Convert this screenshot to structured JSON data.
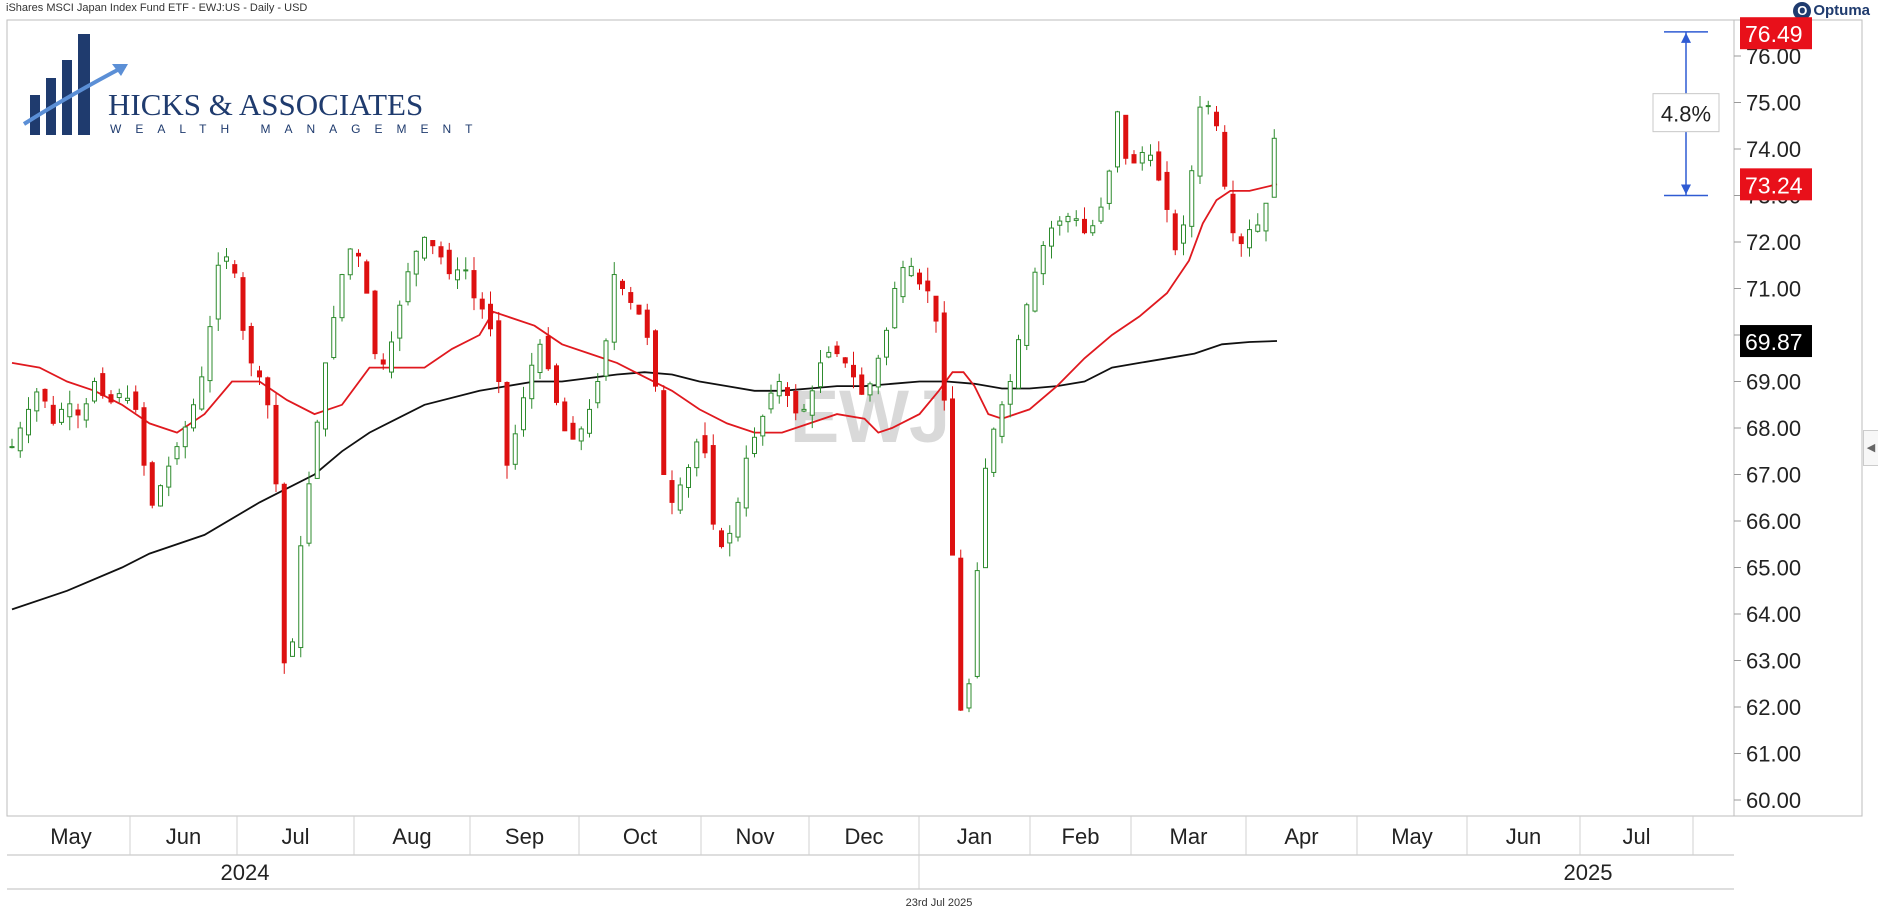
{
  "header": {
    "title": "iShares MSCI Japan Index Fund ETF - EWJ:US - Daily - USD",
    "brand": "Optuma",
    "brand_mark": "O"
  },
  "logo": {
    "name": "HICKS & ASSOCIATES",
    "tagline": "WEALTH MANAGEMENT"
  },
  "watermark": "EWJ",
  "footer": {
    "date": "23rd Jul 2025"
  },
  "colors": {
    "up": "#2e8b2e",
    "down": "#dd1111",
    "ma_short": "#e0191f",
    "ma_long": "#111111",
    "measure": "#2f5bd3",
    "logo": "#1f3b6e"
  },
  "chart_data": {
    "type": "candlestick",
    "ylim": [
      59.8,
      76.9
    ],
    "yticks": [
      "60.00",
      "61.00",
      "62.00",
      "63.00",
      "64.00",
      "65.00",
      "66.00",
      "67.00",
      "68.00",
      "69.00",
      "70.00",
      "71.00",
      "72.00",
      "73.00",
      "74.00",
      "75.00",
      "76.00"
    ],
    "months": [
      "May",
      "Jun",
      "Jul",
      "Aug",
      "Sep",
      "Oct",
      "Nov",
      "Dec",
      "Jan",
      "Feb",
      "Mar",
      "Apr",
      "May",
      "Jun",
      "Jul"
    ],
    "years": [
      "2024",
      "2025"
    ],
    "price_labels": [
      {
        "text": "76.49",
        "value": 76.49,
        "bg": "#e8101a"
      },
      {
        "text": "73.24",
        "value": 73.24,
        "bg": "#e8101a"
      },
      {
        "text": "69.87",
        "value": 69.87,
        "bg": "#000000"
      }
    ],
    "measurement": {
      "from": 73.0,
      "to": 76.52,
      "label": "4.8%"
    },
    "close_path": [
      [
        0.0,
        67.6
      ],
      [
        0.6,
        68.4
      ],
      [
        1.0,
        68.9
      ],
      [
        1.5,
        68.1
      ],
      [
        2.0,
        68.6
      ],
      [
        2.5,
        68.2
      ],
      [
        3.0,
        69.0
      ],
      [
        3.5,
        68.5
      ],
      [
        4.0,
        68.8
      ],
      [
        4.5,
        68.4
      ],
      [
        4.8,
        67.2
      ],
      [
        5.0,
        66.2
      ],
      [
        5.5,
        66.9
      ],
      [
        6.0,
        67.6
      ],
      [
        6.5,
        68.3
      ],
      [
        7.0,
        69.3
      ],
      [
        7.5,
        71.5
      ],
      [
        8.0,
        71.8
      ],
      [
        8.3,
        70.4
      ],
      [
        8.6,
        69.5
      ],
      [
        9.0,
        69.1
      ],
      [
        9.4,
        68.3
      ],
      [
        9.6,
        66.8
      ],
      [
        9.8,
        64.9
      ],
      [
        10.0,
        61.0
      ],
      [
        10.3,
        64.6
      ],
      [
        10.6,
        65.9
      ],
      [
        11.0,
        67.7
      ],
      [
        11.4,
        69.4
      ],
      [
        11.8,
        70.7
      ],
      [
        12.2,
        71.9
      ],
      [
        12.6,
        71.7
      ],
      [
        12.9,
        70.9
      ],
      [
        13.2,
        69.6
      ],
      [
        13.6,
        69.3
      ],
      [
        14.0,
        70.4
      ],
      [
        14.5,
        71.6
      ],
      [
        15.0,
        72.1
      ],
      [
        15.5,
        71.8
      ],
      [
        16.0,
        71.2
      ],
      [
        16.4,
        71.6
      ],
      [
        16.8,
        70.8
      ],
      [
        17.3,
        70.4
      ],
      [
        17.6,
        69.6
      ],
      [
        18.0,
        67.2
      ],
      [
        18.4,
        68.1
      ],
      [
        18.8,
        69.2
      ],
      [
        19.2,
        69.8
      ],
      [
        19.6,
        69.1
      ],
      [
        20.0,
        68.0
      ],
      [
        20.5,
        67.7
      ],
      [
        21.0,
        68.4
      ],
      [
        21.5,
        69.4
      ],
      [
        21.9,
        71.3
      ],
      [
        22.2,
        71.0
      ],
      [
        22.6,
        70.6
      ],
      [
        23.0,
        70.3
      ],
      [
        23.4,
        68.9
      ],
      [
        23.7,
        67.0
      ],
      [
        24.0,
        66.4
      ],
      [
        24.4,
        66.9
      ],
      [
        24.8,
        67.4
      ],
      [
        25.0,
        68.0
      ],
      [
        25.3,
        67.2
      ],
      [
        25.6,
        65.3
      ],
      [
        26.0,
        65.6
      ],
      [
        26.3,
        66.0
      ],
      [
        26.6,
        67.2
      ],
      [
        27.0,
        67.8
      ],
      [
        27.4,
        68.4
      ],
      [
        27.8,
        69.1
      ],
      [
        28.2,
        68.7
      ],
      [
        28.6,
        68.2
      ],
      [
        29.0,
        68.6
      ],
      [
        29.4,
        69.4
      ],
      [
        29.8,
        69.7
      ],
      [
        30.2,
        69.5
      ],
      [
        30.6,
        69.1
      ],
      [
        31.0,
        68.6
      ],
      [
        31.4,
        69.3
      ],
      [
        31.8,
        70.1
      ],
      [
        32.2,
        71.3
      ],
      [
        32.6,
        71.6
      ],
      [
        33.0,
        71.1
      ],
      [
        33.4,
        70.9
      ],
      [
        33.7,
        70.0
      ],
      [
        33.9,
        68.6
      ],
      [
        34.1,
        66.0
      ],
      [
        34.4,
        63.8
      ],
      [
        34.55,
        61.0
      ],
      [
        34.8,
        62.5
      ],
      [
        35.0,
        64.0
      ],
      [
        35.3,
        66.8
      ],
      [
        35.6,
        67.8
      ],
      [
        36.0,
        68.5
      ],
      [
        36.3,
        69.0
      ],
      [
        36.6,
        69.9
      ],
      [
        37.0,
        70.9
      ],
      [
        37.4,
        71.8
      ],
      [
        37.8,
        72.3
      ],
      [
        38.2,
        72.5
      ],
      [
        38.6,
        72.6
      ],
      [
        39.0,
        72.2
      ],
      [
        39.4,
        72.4
      ],
      [
        39.8,
        73.1
      ],
      [
        40.2,
        74.8
      ],
      [
        40.5,
        73.8
      ],
      [
        40.8,
        73.7
      ],
      [
        41.2,
        74.0
      ],
      [
        41.5,
        73.8
      ],
      [
        41.8,
        73.1
      ],
      [
        42.1,
        72.5
      ],
      [
        42.4,
        71.5
      ],
      [
        42.7,
        72.8
      ],
      [
        43.0,
        73.9
      ],
      [
        43.3,
        75.4
      ],
      [
        43.6,
        74.7
      ],
      [
        43.9,
        74.4
      ],
      [
        44.1,
        73.2
      ],
      [
        44.3,
        72.4
      ],
      [
        44.6,
        71.8
      ],
      [
        44.9,
        72.3
      ],
      [
        45.2,
        72.2
      ],
      [
        45.5,
        72.7
      ],
      [
        45.8,
        73.1
      ],
      [
        46.1,
        76.49
      ]
    ],
    "ma_short": [
      [
        0.0,
        69.4
      ],
      [
        1.0,
        69.3
      ],
      [
        2.0,
        69.0
      ],
      [
        3.0,
        68.8
      ],
      [
        4.0,
        68.5
      ],
      [
        5.0,
        68.1
      ],
      [
        6.0,
        67.9
      ],
      [
        7.0,
        68.3
      ],
      [
        8.0,
        69.0
      ],
      [
        9.0,
        69.0
      ],
      [
        10.0,
        68.6
      ],
      [
        11.0,
        68.3
      ],
      [
        12.0,
        68.5
      ],
      [
        13.0,
        69.3
      ],
      [
        14.0,
        69.3
      ],
      [
        15.0,
        69.3
      ],
      [
        16.0,
        69.7
      ],
      [
        17.0,
        70.0
      ],
      [
        17.5,
        70.5
      ],
      [
        18.0,
        70.4
      ],
      [
        19.0,
        70.2
      ],
      [
        20.0,
        69.8
      ],
      [
        21.0,
        69.6
      ],
      [
        22.0,
        69.4
      ],
      [
        23.0,
        69.1
      ],
      [
        24.0,
        68.8
      ],
      [
        25.0,
        68.4
      ],
      [
        26.0,
        68.1
      ],
      [
        27.0,
        67.9
      ],
      [
        28.0,
        67.9
      ],
      [
        29.0,
        68.1
      ],
      [
        30.0,
        68.3
      ],
      [
        31.0,
        68.2
      ],
      [
        31.5,
        67.9
      ],
      [
        32.0,
        68.0
      ],
      [
        33.0,
        68.3
      ],
      [
        33.7,
        68.8
      ],
      [
        34.2,
        69.2
      ],
      [
        34.6,
        69.2
      ],
      [
        35.0,
        68.9
      ],
      [
        35.5,
        68.3
      ],
      [
        36.0,
        68.2
      ],
      [
        37.0,
        68.4
      ],
      [
        38.0,
        68.9
      ],
      [
        39.0,
        69.5
      ],
      [
        40.0,
        70.0
      ],
      [
        41.0,
        70.4
      ],
      [
        42.0,
        70.9
      ],
      [
        42.8,
        71.6
      ],
      [
        43.3,
        72.4
      ],
      [
        43.8,
        72.9
      ],
      [
        44.3,
        73.1
      ],
      [
        45.0,
        73.1
      ],
      [
        46.0,
        73.24
      ]
    ],
    "ma_long": [
      [
        0.0,
        64.1
      ],
      [
        2.0,
        64.5
      ],
      [
        4.0,
        65.0
      ],
      [
        5.0,
        65.3
      ],
      [
        7.0,
        65.7
      ],
      [
        9.0,
        66.4
      ],
      [
        10.0,
        66.7
      ],
      [
        11.0,
        67.0
      ],
      [
        12.0,
        67.5
      ],
      [
        13.0,
        67.9
      ],
      [
        14.0,
        68.2
      ],
      [
        15.0,
        68.5
      ],
      [
        17.0,
        68.8
      ],
      [
        18.0,
        68.9
      ],
      [
        19.0,
        69.0
      ],
      [
        20.0,
        69.0
      ],
      [
        22.0,
        69.15
      ],
      [
        23.0,
        69.2
      ],
      [
        24.0,
        69.15
      ],
      [
        25.0,
        69.0
      ],
      [
        26.0,
        68.9
      ],
      [
        27.0,
        68.8
      ],
      [
        28.0,
        68.8
      ],
      [
        29.0,
        68.85
      ],
      [
        30.0,
        68.9
      ],
      [
        31.0,
        68.9
      ],
      [
        32.0,
        68.95
      ],
      [
        33.0,
        69.0
      ],
      [
        34.0,
        69.0
      ],
      [
        35.0,
        68.95
      ],
      [
        36.0,
        68.85
      ],
      [
        37.0,
        68.85
      ],
      [
        38.0,
        68.9
      ],
      [
        39.0,
        69.0
      ],
      [
        40.0,
        69.3
      ],
      [
        41.0,
        69.4
      ],
      [
        42.0,
        69.5
      ],
      [
        43.0,
        69.6
      ],
      [
        44.0,
        69.8
      ],
      [
        45.0,
        69.85
      ],
      [
        46.0,
        69.87
      ]
    ]
  }
}
